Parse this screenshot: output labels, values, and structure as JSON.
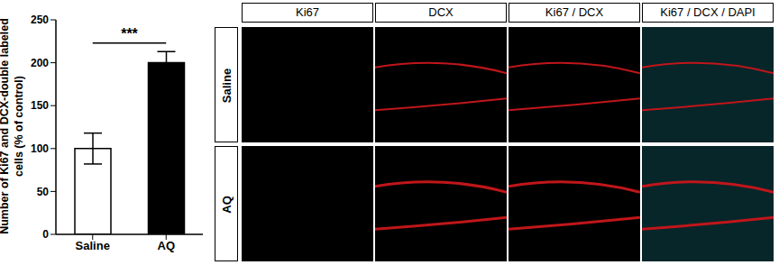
{
  "chart_data": {
    "type": "bar",
    "ylabel": "Number of Ki67 and DCX-double labeled cells (% of control)",
    "categories": [
      "Saline",
      "AQ"
    ],
    "values": [
      100,
      200
    ],
    "errors": [
      18,
      13
    ],
    "colors": [
      "#ffffff",
      "#000000"
    ],
    "ylim": [
      0,
      250
    ],
    "yticks": [
      0,
      50,
      100,
      150,
      200,
      250
    ],
    "annotation": "***"
  },
  "panels": {
    "columns": [
      "Ki67",
      "DCX",
      "Ki67 / DCX",
      "Ki67 / DCX / DAPI"
    ],
    "rows": [
      "Saline",
      "AQ"
    ]
  }
}
